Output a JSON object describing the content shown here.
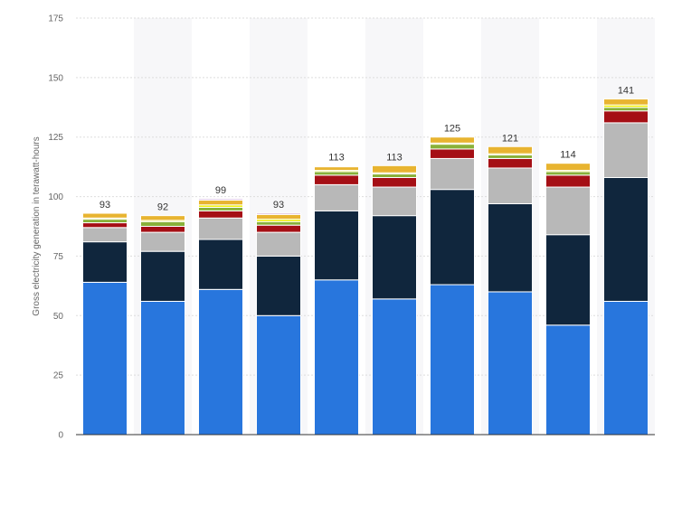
{
  "chart_data": {
    "type": "bar",
    "stacked": true,
    "title": "",
    "xlabel": "",
    "ylabel": "Gross electricity generation in terawatt-hours",
    "ylim": [
      0,
      175
    ],
    "yticks": [
      0,
      25,
      50,
      75,
      100,
      125,
      150,
      175
    ],
    "grid": true,
    "categories": [
      "",
      "",
      "",
      "",
      "",
      "",
      "",
      "",
      "",
      ""
    ],
    "totals": [
      93,
      92,
      99,
      93,
      113,
      113,
      125,
      121,
      114,
      141
    ],
    "series": [
      {
        "name": "",
        "color": "#2876dd",
        "values": [
          64,
          56,
          61,
          50,
          65,
          57,
          63,
          60,
          46,
          56
        ]
      },
      {
        "name": "",
        "color": "#10263d",
        "values": [
          17,
          21,
          21,
          25,
          29,
          35,
          40,
          37,
          38,
          52
        ]
      },
      {
        "name": "",
        "color": "#b8b8b8",
        "values": [
          6,
          8,
          9,
          10,
          11,
          12,
          13,
          15,
          20,
          23
        ]
      },
      {
        "name": "",
        "color": "#a50f15",
        "values": [
          2,
          2.5,
          3,
          3,
          4,
          4,
          4,
          4,
          5,
          5
        ]
      },
      {
        "name": "",
        "color": "#89b139",
        "values": [
          1.5,
          2,
          1.5,
          1.5,
          1.5,
          1.5,
          2,
          1.5,
          1.5,
          1.5
        ]
      },
      {
        "name": "",
        "color": "#f0f000",
        "values": [
          0.5,
          0.5,
          1,
          1,
          0.5,
          0.5,
          0.5,
          0.5,
          0.5,
          1
        ]
      },
      {
        "name": "",
        "color": "#e8b430",
        "values": [
          2,
          2,
          2,
          2,
          1.5,
          3,
          2.5,
          3,
          3,
          2.5
        ]
      },
      {
        "name": "",
        "color": "#b06db0",
        "values": [
          0,
          0,
          0.5,
          0.5,
          0,
          0,
          0,
          0,
          0,
          0
        ]
      }
    ]
  }
}
